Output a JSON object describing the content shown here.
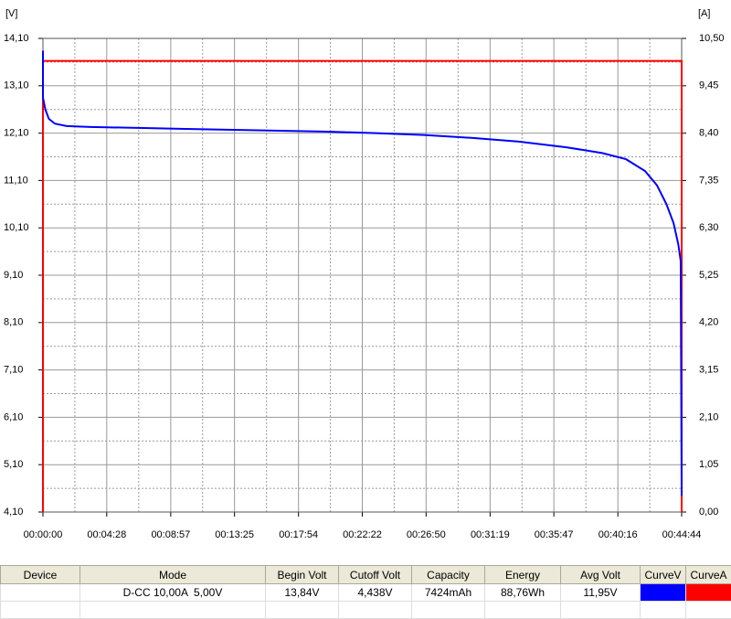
{
  "chart_data": {
    "type": "line",
    "y_label": "[V]",
    "y2_label": "[A]",
    "xlim": [
      0,
      2684
    ],
    "xticks": [
      {
        "value": 0,
        "label": "00:00:00"
      },
      {
        "value": 268,
        "label": "00:04:28"
      },
      {
        "value": 537,
        "label": "00:08:57"
      },
      {
        "value": 805,
        "label": "00:13:25"
      },
      {
        "value": 1074,
        "label": "00:17:54"
      },
      {
        "value": 1342,
        "label": "00:22:22"
      },
      {
        "value": 1610,
        "label": "00:26:50"
      },
      {
        "value": 1879,
        "label": "00:31:19"
      },
      {
        "value": 2147,
        "label": "00:35:47"
      },
      {
        "value": 2416,
        "label": "00:40:16"
      },
      {
        "value": 2684,
        "label": "00:44:44"
      }
    ],
    "ylim": [
      4.1,
      14.1
    ],
    "yticks": [
      {
        "value": 4.1,
        "label": "4,10"
      },
      {
        "value": 5.1,
        "label": "5,10"
      },
      {
        "value": 6.1,
        "label": "6,10"
      },
      {
        "value": 7.1,
        "label": "7,10"
      },
      {
        "value": 8.1,
        "label": "8,10"
      },
      {
        "value": 9.1,
        "label": "9,10"
      },
      {
        "value": 10.1,
        "label": "10,10"
      },
      {
        "value": 11.1,
        "label": "11,10"
      },
      {
        "value": 12.1,
        "label": "12,10"
      },
      {
        "value": 13.1,
        "label": "13,10"
      },
      {
        "value": 14.1,
        "label": "14,10"
      }
    ],
    "y2lim": [
      0,
      10.5
    ],
    "y2ticks": [
      {
        "value": 0,
        "label": "0,00"
      },
      {
        "value": 1.05,
        "label": "1,05"
      },
      {
        "value": 2.1,
        "label": "2,10"
      },
      {
        "value": 3.15,
        "label": "3,15"
      },
      {
        "value": 4.2,
        "label": "4,20"
      },
      {
        "value": 5.25,
        "label": "5,25"
      },
      {
        "value": 6.3,
        "label": "6,30"
      },
      {
        "value": 7.35,
        "label": "7,35"
      },
      {
        "value": 8.4,
        "label": "8,40"
      },
      {
        "value": 9.45,
        "label": "9,45"
      },
      {
        "value": 10.5,
        "label": "10,50"
      }
    ],
    "grid": true,
    "series": [
      {
        "color": "#ff0000",
        "axis": "y2",
        "x": [
          0,
          0,
          2684,
          2684
        ],
        "values": [
          0,
          10.0,
          10.0,
          0
        ]
      },
      {
        "color": "#0000ff",
        "axis": "y",
        "x": [
          0,
          0,
          10,
          25,
          50,
          100,
          200,
          400,
          600,
          800,
          1000,
          1200,
          1400,
          1600,
          1800,
          2000,
          2200,
          2350,
          2450,
          2530,
          2580,
          2620,
          2650,
          2670,
          2680,
          2684
        ],
        "values": [
          13.84,
          12.85,
          12.6,
          12.4,
          12.3,
          12.25,
          12.23,
          12.21,
          12.19,
          12.17,
          12.15,
          12.13,
          12.1,
          12.06,
          12.0,
          11.92,
          11.8,
          11.68,
          11.55,
          11.3,
          11.0,
          10.6,
          10.2,
          9.75,
          9.4,
          4.44
        ]
      }
    ]
  },
  "table": {
    "headers": [
      "Device",
      "Mode",
      "Begin Volt",
      "Cutoff Volt",
      "Capacity",
      "Energy",
      "Avg Volt",
      "CurveV",
      "CurveA"
    ],
    "row": {
      "mode": "D-CC 10,00A  5,00V",
      "begin_volt": "13,84V",
      "cutoff_volt": "4,438V",
      "capacity": "7424mAh",
      "energy": "88,76Wh",
      "avg_volt": "11,95V",
      "curve_v_color": "#0000ff",
      "curve_a_color": "#ff0000"
    }
  }
}
